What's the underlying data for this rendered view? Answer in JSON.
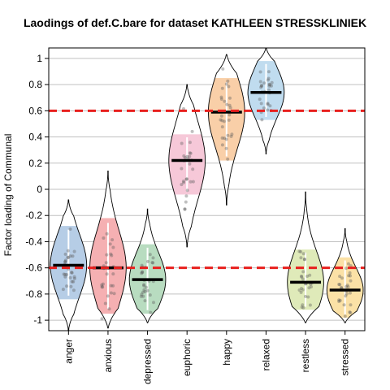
{
  "chart_data": {
    "type": "violin",
    "title": "Laodings of def.C.bare for dataset KATHLEEN STRESSKLINIEK",
    "xlabel": "",
    "ylabel": "Factor loading of Communal",
    "ylim": [
      -1.08,
      1.08
    ],
    "yticks": [
      1,
      0.8,
      0.6,
      0.4,
      0.2,
      0,
      -0.2,
      -0.4,
      -0.6,
      -0.8,
      -1
    ],
    "ytick_labels": [
      "1",
      "0.8",
      "0.6",
      "0.4",
      "0.2",
      "0",
      "-0.2",
      "-0.4",
      "-0.6",
      "-0.8",
      "-1"
    ],
    "reference_lines": [
      0.6,
      -0.6
    ],
    "reference_line_color": "#e8201e",
    "grid": "horizontal",
    "categories": [
      "anger",
      "anxious",
      "depressed",
      "euphoric",
      "happy",
      "relaxed",
      "restless",
      "stressed"
    ],
    "means": [
      -0.58,
      -0.6,
      -0.69,
      0.22,
      0.59,
      0.74,
      -0.71,
      -0.77
    ],
    "ranges": [
      [
        -1.08,
        -0.08
      ],
      [
        -1.06,
        0.14
      ],
      [
        -1.02,
        -0.15
      ],
      [
        -0.44,
        0.8
      ],
      [
        -0.12,
        1.03
      ],
      [
        0.27,
        1.08
      ],
      [
        -1.02,
        -0.02
      ],
      [
        -1.02,
        -0.3
      ]
    ],
    "hdi": [
      [
        -0.84,
        -0.28
      ],
      [
        -0.95,
        -0.22
      ],
      [
        -0.95,
        -0.42
      ],
      [
        -0.04,
        0.42
      ],
      [
        0.22,
        0.85
      ],
      [
        0.53,
        0.98
      ],
      [
        -0.92,
        -0.46
      ],
      [
        -0.98,
        -0.52
      ]
    ],
    "colors": [
      "#b6cde6",
      "#f5b0b2",
      "#b8dcc0",
      "#f6c8d8",
      "#f9cfa8",
      "#c0dcef",
      "#dfeab9",
      "#fbe1a6"
    ]
  }
}
